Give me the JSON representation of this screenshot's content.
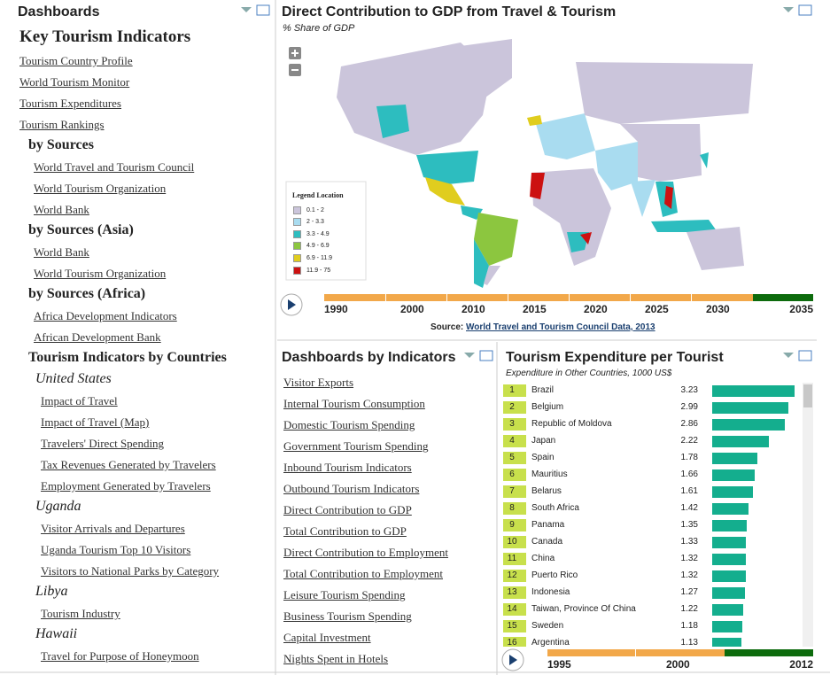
{
  "sidebar": {
    "header": "Dashboards",
    "title": "Key Tourism Indicators",
    "links": [
      "Tourism Country Profile",
      "World Tourism Monitor",
      "Tourism Expenditures",
      "Tourism Rankings"
    ],
    "sections": [
      {
        "heading": "by Sources",
        "links": [
          "World Travel and Tourism Council",
          "World Tourism Organization",
          "World Bank"
        ]
      },
      {
        "heading": "by Sources (Asia)",
        "links": [
          "World Bank",
          "World Tourism Organization"
        ]
      },
      {
        "heading": "by Sources (Africa)",
        "links": [
          "Africa Development Indicators",
          "African Development Bank"
        ]
      }
    ],
    "countries": {
      "heading": "Tourism Indicators by Countries",
      "groups": [
        {
          "name": "United States",
          "links": [
            "Impact of Travel",
            "Impact of Travel (Map)",
            "Travelers' Direct Spending",
            "Tax Revenues Generated by Travelers",
            "Employment Generated by Travelers"
          ]
        },
        {
          "name": "Uganda",
          "links": [
            "Visitor Arrivals and Departures",
            "Uganda Tourism Top 10 Visitors",
            "Visitors to National Parks by Category"
          ]
        },
        {
          "name": "Libya",
          "links": [
            "Tourism Industry"
          ]
        },
        {
          "name": "Hawaii",
          "links": [
            "Travel for Purpose of Honeymoon"
          ]
        }
      ]
    }
  },
  "map_panel": {
    "title": "Direct Contribution to GDP from Travel & Tourism",
    "subtitle": "% Share of GDP",
    "legend": {
      "title": "Legend Location",
      "items": [
        {
          "label": "0.1 - 2",
          "color": "#cbc5db"
        },
        {
          "label": "2 - 3.3",
          "color": "#a9dcf0"
        },
        {
          "label": "3.3 - 4.9",
          "color": "#2dbdbf"
        },
        {
          "label": "4.9 - 6.9",
          "color": "#8cc63f"
        },
        {
          "label": "6.9 - 11.9",
          "color": "#e0cd1e"
        },
        {
          "label": "11.9 - 75",
          "color": "#cc1111"
        }
      ]
    },
    "timeline": [
      1990,
      2000,
      2010,
      2015,
      2020,
      2025,
      2030,
      2035
    ],
    "source": {
      "label": "Source:",
      "link": "World Travel and Tourism Council Data, 2013"
    }
  },
  "indicators_panel": {
    "title": "Dashboards by Indicators",
    "links": [
      "Visitor Exports",
      "Internal Tourism Consumption",
      "Domestic Tourism Spending",
      "Government Tourism Spending",
      "Inbound Tourism Indicators",
      "Outbound Tourism Indicators",
      "Direct Contribution to GDP",
      "Total Contribution to GDP",
      "Direct Contribution to Employment",
      "Total Contribution to Employment",
      "Leisure Tourism Spending",
      "Business Tourism Spending",
      "Capital Investment",
      "Nights Spent in Hotels"
    ]
  },
  "expenditure_panel": {
    "title": "Tourism Expenditure per Tourist",
    "subtitle": "Expenditure in Other Countries, 1000 US$",
    "bar_color": "#14ae8e",
    "rows": [
      {
        "rank": 1,
        "country": "Brazil",
        "value": 3.23
      },
      {
        "rank": 2,
        "country": "Belgium",
        "value": 2.99
      },
      {
        "rank": 3,
        "country": "Republic of Moldova",
        "value": 2.86
      },
      {
        "rank": 4,
        "country": "Japan",
        "value": 2.22
      },
      {
        "rank": 5,
        "country": "Spain",
        "value": 1.78
      },
      {
        "rank": 6,
        "country": "Mauritius",
        "value": 1.66
      },
      {
        "rank": 7,
        "country": "Belarus",
        "value": 1.61
      },
      {
        "rank": 8,
        "country": "South Africa",
        "value": 1.42
      },
      {
        "rank": 9,
        "country": "Panama",
        "value": 1.35
      },
      {
        "rank": 10,
        "country": "Canada",
        "value": 1.33
      },
      {
        "rank": 11,
        "country": "China",
        "value": 1.32
      },
      {
        "rank": 12,
        "country": "Puerto Rico",
        "value": 1.32
      },
      {
        "rank": 13,
        "country": "Indonesia",
        "value": 1.27
      },
      {
        "rank": 14,
        "country": "Taiwan, Province Of China",
        "value": 1.22
      },
      {
        "rank": 15,
        "country": "Sweden",
        "value": 1.18
      },
      {
        "rank": 16,
        "country": "Argentina",
        "value": 1.13
      }
    ],
    "timeline": [
      1995,
      2000,
      2012
    ]
  }
}
